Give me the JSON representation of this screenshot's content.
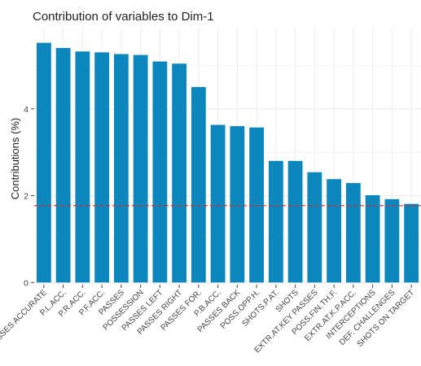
{
  "chart_data": {
    "type": "bar",
    "title": "Contribution of variables to Dim-1",
    "xlabel": "",
    "ylabel": "Contributions (%)",
    "categories": [
      "PASSES ACCURATE",
      "P.L.ACC.",
      "P.R.ACC.",
      "P.F.ACC.",
      "PASSES",
      "POSSESSION",
      "PASSES LEFT",
      "PASSES RIGHT",
      "PASSES FOR.",
      "P.B.ACC.",
      "PASSES BACK",
      "POSS.OPP.H.",
      "SHOTS.P.AT.",
      "SHOTS",
      "EXTR.AT.KEY PASSES",
      "POSS.FIN.TH.F.",
      "EXTR.AT.K.P.ACC.",
      "INTERCEPTIONS",
      "DEF. CHALLENGES",
      "SHOTS ON TARGET"
    ],
    "values": [
      5.52,
      5.4,
      5.32,
      5.3,
      5.26,
      5.24,
      5.09,
      5.04,
      4.5,
      3.63,
      3.6,
      3.57,
      2.8,
      2.8,
      2.54,
      2.38,
      2.29,
      2.01,
      1.92,
      1.81
    ],
    "yticks": [
      0,
      2,
      4
    ],
    "ylim": [
      -0.05,
      5.85
    ],
    "reference_line": 1.77,
    "grid": true,
    "colors": {
      "bar": "#0b87bd",
      "reference_line": "#d62728",
      "grid": "#ebebeb",
      "axis_text": "#444444"
    }
  }
}
